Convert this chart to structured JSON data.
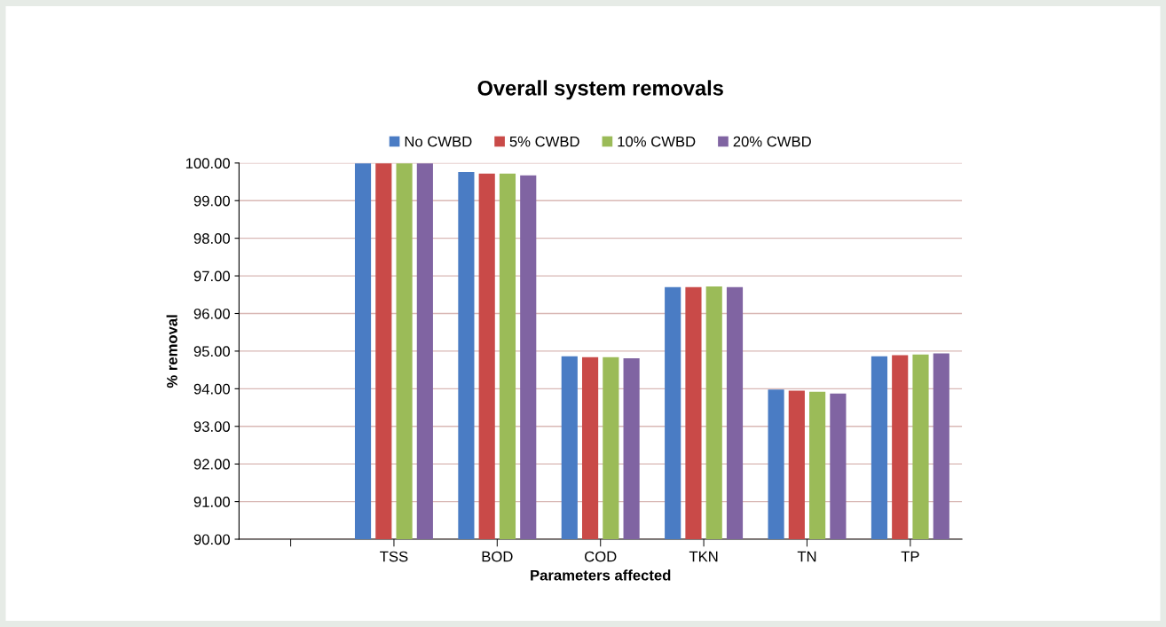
{
  "chart_data": {
    "type": "bar",
    "title": "Overall system removals",
    "xlabel": "Parameters affected",
    "ylabel": "% removal",
    "categories": [
      null,
      "TSS",
      "BOD",
      "COD",
      "TKN",
      "TN",
      "TP"
    ],
    "series": [
      {
        "name": "No CWBD",
        "color": "#4a7cc4",
        "values": [
          null,
          99.99,
          99.76,
          94.86,
          96.7,
          93.98,
          94.86
        ]
      },
      {
        "name": "5% CWBD",
        "color": "#c94a48",
        "values": [
          null,
          99.99,
          99.72,
          94.84,
          96.7,
          93.95,
          94.89
        ]
      },
      {
        "name": "10% CWBD",
        "color": "#9bbb58",
        "values": [
          null,
          99.99,
          99.72,
          94.84,
          96.72,
          93.92,
          94.91
        ]
      },
      {
        "name": "20% CWBD",
        "color": "#8064a2",
        "values": [
          null,
          99.99,
          99.67,
          94.81,
          96.7,
          93.87,
          94.94
        ]
      }
    ],
    "ylim": [
      90,
      100
    ],
    "yticks": [
      {
        "value": 90,
        "label": "90.00"
      },
      {
        "value": 91,
        "label": "91.00"
      },
      {
        "value": 92,
        "label": "92.00"
      },
      {
        "value": 93,
        "label": "93.00"
      },
      {
        "value": 94,
        "label": "94.00"
      },
      {
        "value": 95,
        "label": "95.00"
      },
      {
        "value": 96,
        "label": "96.00"
      },
      {
        "value": 97,
        "label": "97.00"
      },
      {
        "value": 98,
        "label": "98.00"
      },
      {
        "value": 99,
        "label": "99.00"
      },
      {
        "value": 100,
        "label": "100.00"
      }
    ],
    "grid": "y",
    "legend": "top"
  }
}
